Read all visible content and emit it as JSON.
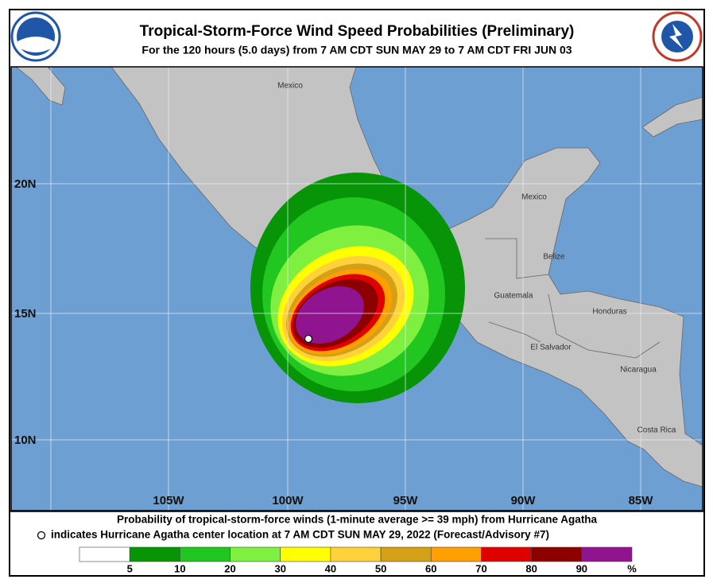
{
  "header": {
    "title": "Tropical-Storm-Force Wind Speed Probabilities (Preliminary)",
    "subtitle": "For the 120 hours (5.0 days) from 7 AM CDT SUN MAY 29 to 7 AM CDT FRI JUN 03"
  },
  "map": {
    "latitude_labels": [
      "20N",
      "15N",
      "10N"
    ],
    "longitude_labels": [
      "105W",
      "100W",
      "95W",
      "90W",
      "85W"
    ],
    "place_labels": [
      "Mexico",
      "Mexico",
      "Belize",
      "Guatemala",
      "Honduras",
      "El Salvador",
      "Nicaragua",
      "Costa Rica"
    ]
  },
  "caption": {
    "line1": "Probability of tropical-storm-force winds (1-minute average >= 39 mph) from Hurricane Agatha",
    "line2": "indicates Hurricane Agatha center location at 7 AM CDT SUN MAY 29, 2022 (Forecast/Advisory #7)"
  },
  "legend": {
    "colors": [
      "#ffffff",
      "#079507",
      "#21c621",
      "#80f040",
      "#ffff00",
      "#ffd23c",
      "#d4a017",
      "#ff9f00",
      "#e00000",
      "#8c0000",
      "#901490"
    ],
    "labels": [
      "5",
      "10",
      "20",
      "30",
      "40",
      "50",
      "60",
      "70",
      "80",
      "90",
      "%"
    ]
  }
}
